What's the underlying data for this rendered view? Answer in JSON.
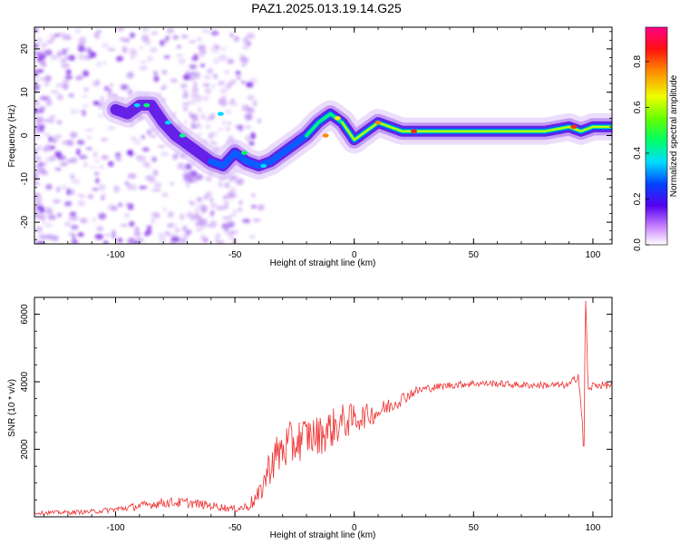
{
  "figure": {
    "title": "PAZ1.2025.013.19.14.G25"
  },
  "chart_data": [
    {
      "type": "heatmap",
      "title": "PAZ1.2025.013.19.14.G25",
      "xlabel": "Height of straight line (km)",
      "ylabel": "Frequency (Hz)",
      "xlim": [
        -134,
        108
      ],
      "ylim": [
        -25,
        25
      ],
      "xticks": [
        -100,
        -50,
        0,
        50,
        100
      ],
      "yticks": [
        20,
        10,
        0,
        -10,
        -20
      ],
      "ridge": {
        "x": [
          -100,
          -95,
          -90,
          -85,
          -80,
          -75,
          -70,
          -65,
          -60,
          -55,
          -50,
          -45,
          -40,
          -35,
          -30,
          -25,
          -20,
          -15,
          -10,
          -5,
          0,
          5,
          10,
          15,
          20,
          30,
          40,
          50,
          60,
          70,
          80,
          90,
          95,
          100,
          108
        ],
        "y": [
          6,
          5,
          7,
          7,
          3,
          0,
          -2,
          -4,
          -6,
          -7,
          -4,
          -6,
          -7,
          -6,
          -4,
          -2,
          0,
          3,
          5,
          3,
          -1,
          1,
          3,
          2,
          1,
          1,
          1,
          1,
          1,
          1,
          1,
          2,
          1,
          2,
          2
        ]
      },
      "colorbar": {
        "label": "Normalized spectral amplitude",
        "ticks": [
          "0.0",
          "0.2",
          "0.4",
          "0.6",
          "0.8"
        ],
        "range": [
          0,
          0.95
        ]
      },
      "grid": false
    },
    {
      "type": "line",
      "xlabel": "Height of straight line (km)",
      "ylabel": "SNR (10 * v/v)",
      "xlim": [
        -134,
        108
      ],
      "ylim": [
        0,
        6500
      ],
      "xticks": [
        -100,
        -50,
        0,
        50,
        100
      ],
      "yticks": [
        2000,
        4000,
        6000
      ],
      "series": [
        {
          "color": "#ee3333",
          "x": [
            -134,
            -120,
            -110,
            -100,
            -90,
            -80,
            -70,
            -60,
            -50,
            -45,
            -40,
            -35,
            -30,
            -25,
            -20,
            -15,
            -10,
            -5,
            0,
            5,
            10,
            15,
            20,
            25,
            30,
            35,
            40,
            50,
            60,
            70,
            80,
            90,
            94,
            96,
            97,
            98,
            100,
            108
          ],
          "y": [
            120,
            130,
            150,
            220,
            320,
            420,
            420,
            330,
            230,
            300,
            600,
            1600,
            2000,
            2200,
            2400,
            2400,
            2600,
            2800,
            2900,
            3000,
            3100,
            3300,
            3500,
            3700,
            3800,
            3850,
            3900,
            3950,
            3950,
            3900,
            3900,
            3900,
            4200,
            2400,
            6400,
            3700,
            3900,
            3900
          ],
          "noise": [
            60,
            60,
            70,
            90,
            120,
            150,
            150,
            120,
            100,
            150,
            300,
            600,
            700,
            700,
            600,
            600,
            600,
            550,
            450,
            350,
            300,
            250,
            200,
            150,
            120,
            110,
            110,
            100,
            100,
            100,
            100,
            100,
            150,
            150,
            150,
            150,
            110,
            110
          ]
        }
      ],
      "grid": false
    }
  ]
}
